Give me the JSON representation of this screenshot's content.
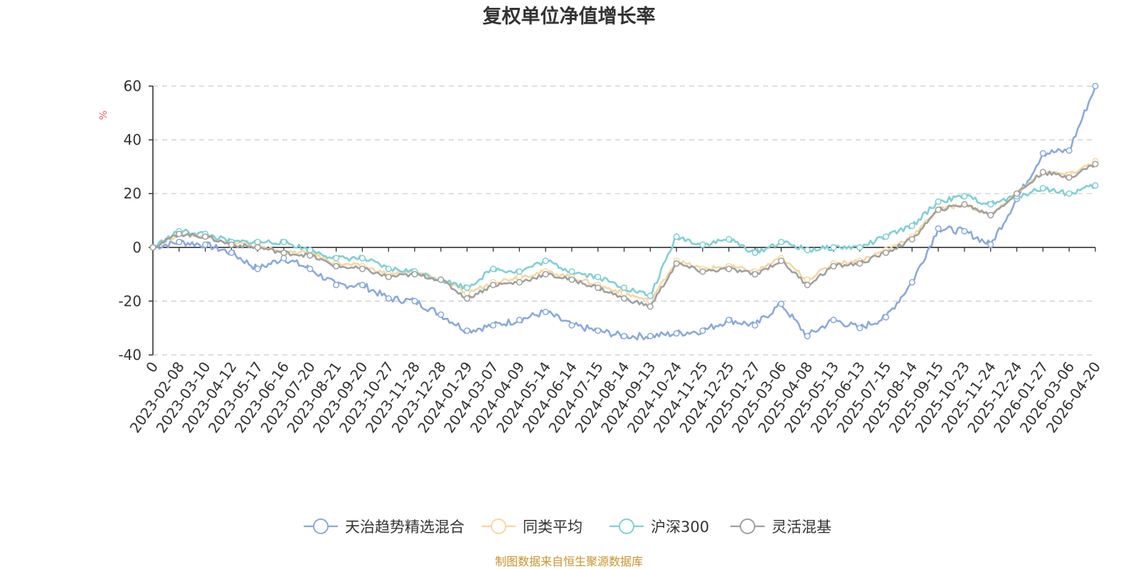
{
  "chart_data": {
    "type": "line",
    "title": "复权单位净值增长率",
    "ylabel": "%",
    "ylim": [
      -40,
      60
    ],
    "yticks": [
      -40,
      -20,
      0,
      20,
      40,
      60
    ],
    "xtick_labels": [
      "0",
      "2023-02-08",
      "2023-03-10",
      "2023-04-12",
      "2023-05-17",
      "2023-06-16",
      "2023-07-20",
      "2023-08-21",
      "2023-09-20",
      "2023-10-27",
      "2023-11-28",
      "2023-12-28",
      "2024-01-29",
      "2024-03-07",
      "2024-04-09",
      "2024-05-14",
      "2024-06-14",
      "2024-07-15",
      "2024-08-14",
      "2024-09-13",
      "2024-10-24",
      "2024-11-25",
      "2024-12-25",
      "2025-01-27",
      "2025-03-06",
      "2025-04-08",
      "2025-05-13",
      "2025-06-13",
      "2025-07-15",
      "2025-08-14",
      "2025-09-15",
      "2025-10-23",
      "2025-11-24",
      "2025-12-24",
      "2026-01-27",
      "2026-03-06",
      "2026-04-20"
    ],
    "x": [
      "0",
      "2023-02-08",
      "2023-03-10",
      "2023-04-12",
      "2023-05-17",
      "2023-06-16",
      "2023-07-20",
      "2023-08-21",
      "2023-09-20",
      "2023-10-27",
      "2023-11-28",
      "2023-12-28",
      "2024-01-29",
      "2024-03-07",
      "2024-04-09",
      "2024-05-14",
      "2024-06-14",
      "2024-07-15",
      "2024-08-14",
      "2024-09-13",
      "2024-10-24",
      "2024-11-25",
      "2024-12-25",
      "2025-01-27",
      "2025-03-06",
      "2025-04-08",
      "2025-05-13",
      "2025-06-13",
      "2025-07-15",
      "2025-08-14",
      "2025-09-15",
      "2025-10-23",
      "2025-11-24",
      "2025-12-24",
      "2026-01-27",
      "2026-03-06",
      "2026-04-20"
    ],
    "series": [
      {
        "name": "天治趋势精选混合",
        "color": "#8aa9da",
        "values": [
          0,
          2,
          1,
          -2,
          -8,
          -4,
          -8,
          -14,
          -14,
          -19,
          -20,
          -25,
          -31,
          -29,
          -27,
          -24,
          -29,
          -31,
          -33,
          -33,
          -32,
          -31,
          -27,
          -29,
          -21,
          -33,
          -27,
          -30,
          -26,
          -13,
          7,
          6,
          1,
          18,
          35,
          36,
          60
        ]
      },
      {
        "name": "同类平均",
        "color": "#f7d7a0",
        "values": [
          0,
          5,
          4,
          2,
          1,
          -2,
          -2,
          -6,
          -7,
          -10,
          -9,
          -12,
          -17,
          -13,
          -11,
          -9,
          -11,
          -14,
          -17,
          -20,
          -5,
          -8,
          -7,
          -9,
          -4,
          -12,
          -6,
          -5,
          -1,
          4,
          14,
          16,
          12,
          20,
          28,
          27,
          32
        ]
      },
      {
        "name": "沪深300",
        "color": "#7fd0d4",
        "values": [
          0,
          6,
          5,
          2,
          2,
          2,
          -1,
          -4,
          -4,
          -8,
          -9,
          -12,
          -15,
          -8,
          -9,
          -5,
          -9,
          -11,
          -15,
          -18,
          4,
          1,
          3,
          -2,
          2,
          -1,
          0,
          0,
          4,
          8,
          17,
          19,
          16,
          19,
          22,
          20,
          23
        ]
      },
      {
        "name": "灵活混基",
        "color": "#a0a0a0",
        "values": [
          0,
          5,
          4,
          1,
          0,
          -2,
          -3,
          -7,
          -8,
          -11,
          -10,
          -12,
          -19,
          -14,
          -13,
          -10,
          -12,
          -15,
          -19,
          -22,
          -6,
          -9,
          -8,
          -10,
          -5,
          -14,
          -7,
          -6,
          -2,
          3,
          14,
          16,
          12,
          20,
          28,
          26,
          31
        ]
      }
    ]
  },
  "legend": {
    "items": [
      "天治趋势精选混合",
      "同类平均",
      "沪深300",
      "灵活混基"
    ]
  },
  "footer": {
    "source": "制图数据来自恒生聚源数据库"
  },
  "colors": {
    "unit": "#e06666",
    "source": "#c8932c",
    "grid": "#cccccc",
    "axis": "#333333"
  }
}
